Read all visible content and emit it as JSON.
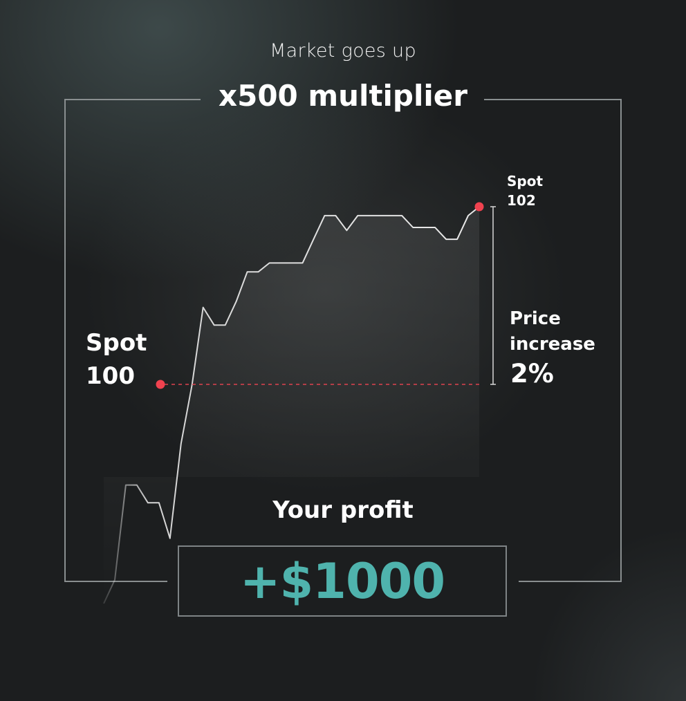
{
  "header": {
    "subtitle": "Market goes up",
    "title": "x500 multiplier"
  },
  "chart_data": {
    "type": "line",
    "start": {
      "label_line1": "Spot",
      "label_line2": "100",
      "value": 100
    },
    "end": {
      "label_line1": "Spot",
      "label_line2": "102",
      "value": 102
    },
    "price_increase": {
      "label_line1": "Price",
      "label_line2": "increase",
      "value": "2%"
    },
    "multiplier": 500,
    "series": [
      {
        "values": [
          96.3,
          96.7,
          98.3,
          98.3,
          98.0,
          98.0,
          97.4,
          99.0,
          100.0,
          101.3,
          101.0,
          101.0,
          101.4,
          101.9,
          101.9,
          102.05,
          102.05,
          102.05,
          102.05,
          102.45,
          102.85,
          102.85,
          102.6,
          102.85,
          102.85,
          102.85,
          102.85,
          102.85,
          102.65,
          102.65,
          102.65,
          102.45,
          102.45,
          102.85,
          103.0
        ]
      }
    ],
    "colors": {
      "line": "#e9e9e9",
      "marker": "#f0424f",
      "reference": "#e0424f",
      "profit": "#4fb3ad",
      "frame": "#8a8f90"
    }
  },
  "result": {
    "label": "Your profit",
    "value": "+$1000"
  }
}
